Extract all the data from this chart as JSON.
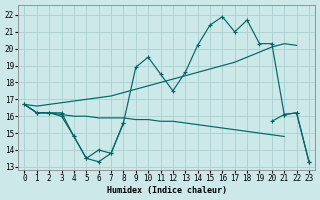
{
  "xlabel": "Humidex (Indice chaleur)",
  "background_color": "#cce8e8",
  "grid_color": "#aad0d0",
  "line_color": "#006666",
  "xlim": [
    -0.5,
    23.5
  ],
  "ylim": [
    12.8,
    22.6
  ],
  "yticks": [
    13,
    14,
    15,
    16,
    17,
    18,
    19,
    20,
    21,
    22
  ],
  "xticks": [
    0,
    1,
    2,
    3,
    4,
    5,
    6,
    7,
    8,
    9,
    10,
    11,
    12,
    13,
    14,
    15,
    16,
    17,
    18,
    19,
    20,
    21,
    22,
    23
  ],
  "upper_jagged_x": [
    0,
    1,
    2,
    3,
    4,
    5,
    6,
    7,
    8,
    9,
    10,
    11,
    12,
    13,
    14,
    15,
    16,
    17,
    18,
    19,
    20,
    21,
    22,
    23
  ],
  "upper_jagged_y": [
    16.7,
    16.2,
    16.2,
    16.2,
    14.8,
    13.5,
    13.3,
    13.8,
    15.6,
    18.9,
    19.5,
    18.5,
    17.5,
    18.6,
    20.2,
    21.4,
    21.9,
    21.0,
    21.7,
    20.3,
    20.3,
    16.1,
    16.2,
    13.3
  ],
  "lower_jagged_x": [
    0,
    1,
    2,
    3,
    4,
    5,
    6,
    7,
    8,
    9,
    10,
    11,
    12,
    13,
    14,
    15,
    16,
    17,
    18,
    19,
    20,
    21,
    22,
    23
  ],
  "lower_jagged_y": [
    16.7,
    16.2,
    16.2,
    16.0,
    14.8,
    13.5,
    14.0,
    13.8,
    15.6,
    null,
    null,
    null,
    null,
    null,
    null,
    null,
    null,
    null,
    null,
    null,
    15.7,
    16.1,
    16.2,
    13.3
  ],
  "smooth_upper_x": [
    0,
    1,
    2,
    3,
    4,
    5,
    6,
    7,
    8,
    9,
    10,
    11,
    12,
    13,
    14,
    15,
    16,
    17,
    18,
    19,
    20,
    21,
    22,
    23
  ],
  "smooth_upper_y": [
    16.7,
    16.6,
    16.7,
    16.8,
    16.9,
    17.0,
    17.1,
    17.2,
    17.4,
    17.6,
    17.8,
    18.0,
    18.2,
    18.4,
    18.6,
    18.8,
    19.0,
    19.2,
    19.5,
    19.8,
    20.1,
    20.3,
    20.2,
    null
  ],
  "smooth_lower_x": [
    0,
    1,
    2,
    3,
    4,
    5,
    6,
    7,
    8,
    9,
    10,
    11,
    12,
    13,
    14,
    15,
    16,
    17,
    18,
    19,
    20,
    21,
    22,
    23
  ],
  "smooth_lower_y": [
    16.7,
    16.2,
    16.2,
    16.1,
    16.0,
    16.0,
    15.9,
    15.9,
    15.9,
    15.8,
    15.8,
    15.7,
    15.7,
    15.6,
    15.5,
    15.4,
    15.3,
    15.2,
    15.1,
    15.0,
    14.9,
    14.8,
    null,
    null
  ]
}
